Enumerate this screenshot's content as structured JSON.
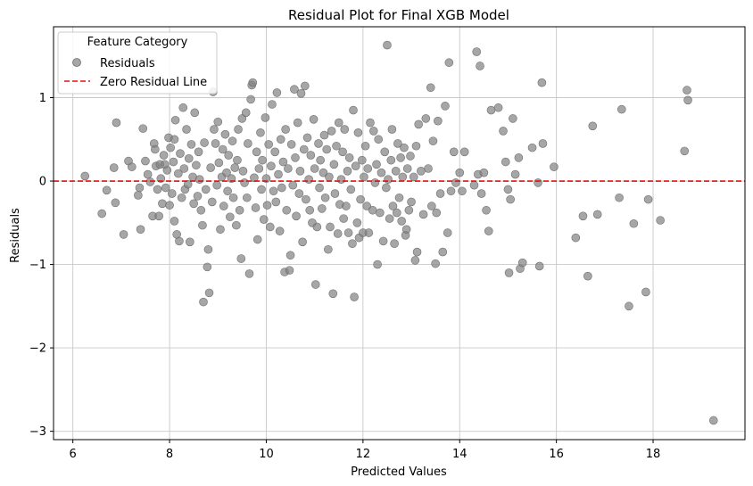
{
  "chart_data": {
    "type": "scatter",
    "title": "Residual Plot for Final XGB Model",
    "xlabel": "Predicted Values",
    "ylabel": "Residuals",
    "xlim": [
      5.6,
      19.9
    ],
    "ylim": [
      -3.1,
      1.85
    ],
    "x_ticks": [
      6,
      8,
      10,
      12,
      14,
      16,
      18
    ],
    "y_ticks": [
      -3,
      -2,
      -1,
      0,
      1
    ],
    "grid": true,
    "legend": {
      "title": "Feature Category",
      "position": "top-left",
      "entries": [
        "Residuals",
        "Zero Residual Line"
      ]
    },
    "colors": {
      "points": "#808080",
      "zero_line": "#e01010",
      "grid": "#c8c8c8"
    },
    "reference_line": {
      "name": "Zero Residual Line",
      "y": 0,
      "style": "dashed"
    },
    "series": [
      {
        "name": "Residuals",
        "points": [
          [
            6.25,
            0.06
          ],
          [
            6.6,
            -0.39
          ],
          [
            6.7,
            -0.11
          ],
          [
            6.85,
            0.16
          ],
          [
            6.9,
            0.7
          ],
          [
            6.88,
            -0.26
          ],
          [
            7.05,
            -0.64
          ],
          [
            7.15,
            0.24
          ],
          [
            7.22,
            0.17
          ],
          [
            7.35,
            -0.17
          ],
          [
            7.38,
            -0.08
          ],
          [
            7.4,
            -0.58
          ],
          [
            7.45,
            0.63
          ],
          [
            7.5,
            0.24
          ],
          [
            7.55,
            0.08
          ],
          [
            7.6,
            -0.01
          ],
          [
            7.65,
            -0.42
          ],
          [
            7.68,
            0.45
          ],
          [
            7.7,
            0.38
          ],
          [
            7.72,
            0.18
          ],
          [
            7.75,
            -0.1
          ],
          [
            7.78,
            -0.42
          ],
          [
            7.8,
            0.2
          ],
          [
            7.82,
            0.03
          ],
          [
            7.85,
            -0.27
          ],
          [
            7.88,
            0.31
          ],
          [
            7.9,
            0.2
          ],
          [
            7.92,
            -0.08
          ],
          [
            7.95,
            0.13
          ],
          [
            7.98,
            0.52
          ],
          [
            8.0,
            -0.29
          ],
          [
            8.02,
            0.4
          ],
          [
            8.05,
            -0.15
          ],
          [
            8.08,
            0.23
          ],
          [
            8.1,
            0.5
          ],
          [
            8.1,
            -0.48
          ],
          [
            8.12,
            0.73
          ],
          [
            8.15,
            -0.64
          ],
          [
            8.18,
            0.09
          ],
          [
            8.2,
            -0.72
          ],
          [
            8.22,
            0.33
          ],
          [
            8.25,
            -0.2
          ],
          [
            8.28,
            0.88
          ],
          [
            8.3,
            0.15
          ],
          [
            8.32,
            -0.1
          ],
          [
            8.35,
            0.62
          ],
          [
            8.38,
            -0.04
          ],
          [
            8.4,
            0.27
          ],
          [
            8.42,
            -0.73
          ],
          [
            8.45,
            0.44
          ],
          [
            8.48,
            0.05
          ],
          [
            8.5,
            -0.27
          ],
          [
            8.52,
            0.82
          ],
          [
            8.55,
            0.19
          ],
          [
            8.58,
            -0.18
          ],
          [
            8.6,
            0.35
          ],
          [
            8.62,
            0.02
          ],
          [
            8.65,
            -0.35
          ],
          [
            8.68,
            -0.53
          ],
          [
            8.7,
            -1.45
          ],
          [
            8.72,
            0.46
          ],
          [
            8.75,
            -0.1
          ],
          [
            8.78,
            -1.03
          ],
          [
            8.8,
            -0.82
          ],
          [
            8.82,
            -1.34
          ],
          [
            8.85,
            0.16
          ],
          [
            8.88,
            -0.25
          ],
          [
            8.9,
            1.07
          ],
          [
            8.92,
            0.62
          ],
          [
            8.95,
            0.45
          ],
          [
            8.98,
            -0.05
          ],
          [
            9.0,
            0.71
          ],
          [
            9.02,
            0.22
          ],
          [
            9.05,
            -0.58
          ],
          [
            9.08,
            0.05
          ],
          [
            9.1,
            0.38
          ],
          [
            9.12,
            -0.3
          ],
          [
            9.15,
            0.56
          ],
          [
            9.18,
            0.1
          ],
          [
            9.2,
            -0.12
          ],
          [
            9.22,
            0.31
          ],
          [
            9.25,
            -0.43
          ],
          [
            9.28,
            0.03
          ],
          [
            9.3,
            0.48
          ],
          [
            9.32,
            -0.2
          ],
          [
            9.35,
            0.16
          ],
          [
            9.38,
            -0.53
          ],
          [
            9.4,
            0.25
          ],
          [
            9.42,
            0.62
          ],
          [
            9.45,
            -0.35
          ],
          [
            9.48,
            -0.93
          ],
          [
            9.5,
            0.75
          ],
          [
            9.52,
            0.12
          ],
          [
            9.55,
            -0.02
          ],
          [
            9.58,
            0.82
          ],
          [
            9.6,
            -0.2
          ],
          [
            9.62,
            0.45
          ],
          [
            9.65,
            -1.11
          ],
          [
            9.68,
            0.98
          ],
          [
            9.7,
            1.15
          ],
          [
            9.72,
            1.18
          ],
          [
            9.75,
            0.04
          ],
          [
            9.78,
            -0.32
          ],
          [
            9.8,
            0.35
          ],
          [
            9.82,
            -0.7
          ],
          [
            9.85,
            0.15
          ],
          [
            9.88,
            0.58
          ],
          [
            9.9,
            -0.1
          ],
          [
            9.92,
            0.25
          ],
          [
            9.95,
            -0.46
          ],
          [
            9.98,
            0.76
          ],
          [
            10.0,
            0.03
          ],
          [
            10.02,
            -0.29
          ],
          [
            10.05,
            0.44
          ],
          [
            10.08,
            -0.55
          ],
          [
            10.1,
            0.18
          ],
          [
            10.12,
            0.92
          ],
          [
            10.15,
            -0.12
          ],
          [
            10.18,
            0.35
          ],
          [
            10.2,
            -0.25
          ],
          [
            10.22,
            1.06
          ],
          [
            10.25,
            0.08
          ],
          [
            10.28,
            -0.6
          ],
          [
            10.3,
            0.5
          ],
          [
            10.32,
            -0.08
          ],
          [
            10.35,
            0.23
          ],
          [
            10.38,
            -1.09
          ],
          [
            10.4,
            0.62
          ],
          [
            10.42,
            -0.35
          ],
          [
            10.45,
            0.15
          ],
          [
            10.48,
            -1.07
          ],
          [
            10.5,
            -0.89
          ],
          [
            10.52,
            0.44
          ],
          [
            10.55,
            -0.05
          ],
          [
            10.58,
            1.1
          ],
          [
            10.6,
            0.28
          ],
          [
            10.62,
            -0.42
          ],
          [
            10.65,
            0.7
          ],
          [
            10.68,
            -0.15
          ],
          [
            10.7,
            0.12
          ],
          [
            10.72,
            1.05
          ],
          [
            10.75,
            -0.73
          ],
          [
            10.78,
            0.38
          ],
          [
            10.8,
            1.14
          ],
          [
            10.82,
            -0.22
          ],
          [
            10.85,
            0.52
          ],
          [
            10.88,
            0.02
          ],
          [
            10.9,
            -0.35
          ],
          [
            10.92,
            0.31
          ],
          [
            10.95,
            -0.5
          ],
          [
            10.98,
            0.74
          ],
          [
            11.0,
            0.15
          ],
          [
            11.02,
            -1.24
          ],
          [
            11.05,
            -0.55
          ],
          [
            11.08,
            0.45
          ],
          [
            11.1,
            -0.08
          ],
          [
            11.12,
            0.25
          ],
          [
            11.15,
            -0.33
          ],
          [
            11.18,
            0.1
          ],
          [
            11.2,
            0.55
          ],
          [
            11.22,
            -0.2
          ],
          [
            11.25,
            0.38
          ],
          [
            11.28,
            -0.82
          ],
          [
            11.3,
            0.05
          ],
          [
            11.32,
            -0.55
          ],
          [
            11.35,
            0.6
          ],
          [
            11.38,
            -1.35
          ],
          [
            11.4,
            0.2
          ],
          [
            11.42,
            -0.15
          ],
          [
            11.45,
            0.42
          ],
          [
            11.48,
            -0.63
          ],
          [
            11.5,
            0.7
          ],
          [
            11.52,
            -0.28
          ],
          [
            11.55,
            0.02
          ],
          [
            11.58,
            0.35
          ],
          [
            11.6,
            -0.45
          ],
          [
            11.62,
            0.62
          ],
          [
            11.65,
            -0.3
          ],
          [
            11.68,
            0.12
          ],
          [
            11.7,
            -0.62
          ],
          [
            11.72,
            0.28
          ],
          [
            11.75,
            -0.1
          ],
          [
            11.78,
            -0.75
          ],
          [
            11.8,
            0.85
          ],
          [
            11.82,
            -1.39
          ],
          [
            11.85,
            0.18
          ],
          [
            11.88,
            -0.5
          ],
          [
            11.9,
            0.58
          ],
          [
            11.92,
            -0.68
          ],
          [
            11.95,
            -0.22
          ],
          [
            11.98,
            0.25
          ],
          [
            12.0,
            -0.62
          ],
          [
            12.02,
            0.05
          ],
          [
            12.05,
            0.42
          ],
          [
            12.08,
            -0.3
          ],
          [
            12.1,
            0.15
          ],
          [
            12.12,
            -0.62
          ],
          [
            12.15,
            0.7
          ],
          [
            12.2,
            -0.35
          ],
          [
            12.22,
            0.6
          ],
          [
            12.25,
            -0.02
          ],
          [
            12.28,
            0.2
          ],
          [
            12.3,
            -1.0
          ],
          [
            12.32,
            0.5
          ],
          [
            12.35,
            -0.38
          ],
          [
            12.38,
            0.1
          ],
          [
            12.42,
            -0.72
          ],
          [
            12.45,
            0.35
          ],
          [
            12.48,
            -0.08
          ],
          [
            12.5,
            1.63
          ],
          [
            12.52,
            0.02
          ],
          [
            12.55,
            -0.45
          ],
          [
            12.58,
            0.25
          ],
          [
            12.6,
            0.62
          ],
          [
            12.62,
            -0.3
          ],
          [
            12.65,
            -0.75
          ],
          [
            12.68,
            0.12
          ],
          [
            12.7,
            -0.38
          ],
          [
            12.72,
            0.45
          ],
          [
            12.75,
            -0.2
          ],
          [
            12.78,
            0.28
          ],
          [
            12.8,
            -0.48
          ],
          [
            12.82,
            0.05
          ],
          [
            12.85,
            0.4
          ],
          [
            12.88,
            -0.65
          ],
          [
            12.9,
            -0.58
          ],
          [
            12.92,
            0.15
          ],
          [
            12.95,
            -0.35
          ],
          [
            12.98,
            0.3
          ],
          [
            13.0,
            -0.25
          ],
          [
            13.05,
            0.05
          ],
          [
            13.08,
            -0.95
          ],
          [
            13.1,
            0.42
          ],
          [
            13.12,
            -0.85
          ],
          [
            13.15,
            0.68
          ],
          [
            13.2,
            0.12
          ],
          [
            13.25,
            -0.4
          ],
          [
            13.3,
            0.75
          ],
          [
            13.35,
            0.15
          ],
          [
            13.4,
            1.12
          ],
          [
            13.42,
            -0.3
          ],
          [
            13.45,
            0.48
          ],
          [
            13.5,
            -0.99
          ],
          [
            13.52,
            -0.38
          ],
          [
            13.55,
            0.72
          ],
          [
            13.6,
            -0.15
          ],
          [
            13.65,
            -0.85
          ],
          [
            13.7,
            0.9
          ],
          [
            13.75,
            -0.62
          ],
          [
            13.78,
            1.42
          ],
          [
            13.82,
            -0.12
          ],
          [
            13.88,
            0.35
          ],
          [
            13.92,
            -0.02
          ],
          [
            14.0,
            0.1
          ],
          [
            14.05,
            -0.12
          ],
          [
            14.1,
            0.35
          ],
          [
            14.3,
            -0.05
          ],
          [
            14.35,
            1.55
          ],
          [
            14.38,
            0.08
          ],
          [
            14.42,
            1.38
          ],
          [
            14.45,
            -0.15
          ],
          [
            14.5,
            0.1
          ],
          [
            14.55,
            -0.35
          ],
          [
            14.6,
            -0.6
          ],
          [
            14.65,
            0.85
          ],
          [
            14.8,
            0.88
          ],
          [
            14.9,
            0.6
          ],
          [
            14.95,
            0.23
          ],
          [
            15.0,
            -0.1
          ],
          [
            15.02,
            -1.1
          ],
          [
            15.05,
            -0.22
          ],
          [
            15.1,
            0.75
          ],
          [
            15.15,
            0.08
          ],
          [
            15.22,
            0.28
          ],
          [
            15.25,
            -1.05
          ],
          [
            15.3,
            -0.98
          ],
          [
            15.5,
            0.4
          ],
          [
            15.62,
            -0.02
          ],
          [
            15.65,
            -1.02
          ],
          [
            15.7,
            1.18
          ],
          [
            15.72,
            0.45
          ],
          [
            15.95,
            0.17
          ],
          [
            16.4,
            -0.68
          ],
          [
            16.55,
            -0.42
          ],
          [
            16.65,
            -1.14
          ],
          [
            16.75,
            0.66
          ],
          [
            16.85,
            -0.4
          ],
          [
            17.3,
            -0.2
          ],
          [
            17.35,
            0.86
          ],
          [
            17.5,
            -1.5
          ],
          [
            17.6,
            -0.51
          ],
          [
            17.85,
            -1.33
          ],
          [
            17.9,
            -0.22
          ],
          [
            18.15,
            -0.47
          ],
          [
            18.65,
            0.36
          ],
          [
            18.7,
            1.09
          ],
          [
            18.72,
            0.97
          ],
          [
            19.25,
            -2.87
          ]
        ]
      }
    ]
  }
}
